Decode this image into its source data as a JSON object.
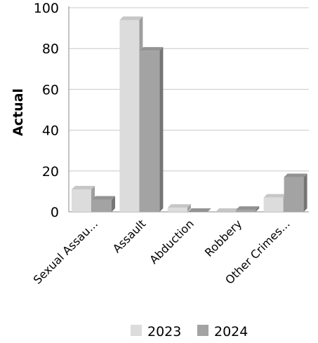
{
  "chart_data": {
    "type": "bar",
    "ylabel": "Actual",
    "xlabel": "",
    "categories": [
      "Sexual Assau...",
      "Assault",
      "Abduction",
      "Robbery",
      "Other Crimes..."
    ],
    "series": [
      {
        "name": "2023",
        "values": [
          11,
          94,
          2,
          0,
          7
        ],
        "color": "#dcdcdc"
      },
      {
        "name": "2024",
        "values": [
          6,
          79,
          0,
          1,
          17
        ],
        "color": "#a3a3a3"
      }
    ],
    "ylim": [
      0,
      100
    ],
    "yticks": [
      "0",
      "20",
      "40",
      "60",
      "80",
      "100"
    ],
    "grid": true,
    "legend": "bottom"
  }
}
